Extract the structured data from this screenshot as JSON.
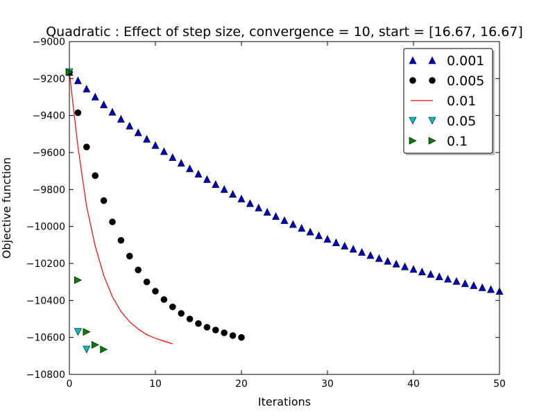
{
  "chart_data": {
    "type": "scatter",
    "title": "Quadratic : Effect of step size, convergence = 10, start = [16.67, 16.67]",
    "xlabel": "Iterations",
    "ylabel": "Objective function",
    "xlim": [
      0,
      50
    ],
    "ylim": [
      -10800,
      -9000
    ],
    "xticks": [
      "0",
      "10",
      "20",
      "30",
      "40",
      "50"
    ],
    "yticks": [
      "−9000",
      "−9200",
      "−9400",
      "−9600",
      "−9800",
      "−10000",
      "−10200",
      "−10400",
      "−10600",
      "−10800"
    ],
    "xtick_values": [
      0,
      10,
      20,
      30,
      40,
      50
    ],
    "ytick_values": [
      -9000,
      -9200,
      -9400,
      -9600,
      -9800,
      -10000,
      -10200,
      -10400,
      -10600,
      -10800
    ],
    "grid": false,
    "legend_position": "top-right",
    "series": [
      {
        "name": "0.001",
        "marker": "triangle-up",
        "color": "#0000bf",
        "x": [
          0,
          1,
          2,
          3,
          4,
          5,
          6,
          7,
          8,
          9,
          10,
          11,
          12,
          13,
          14,
          15,
          16,
          17,
          18,
          19,
          20,
          21,
          22,
          23,
          24,
          25,
          26,
          27,
          28,
          29,
          30,
          31,
          32,
          33,
          34,
          35,
          36,
          37,
          38,
          39,
          40,
          41,
          42,
          43,
          44,
          45,
          46,
          47,
          48,
          49,
          50
        ],
        "y": [
          -9165,
          -9210,
          -9255,
          -9298,
          -9340,
          -9380,
          -9418,
          -9455,
          -9491,
          -9526,
          -9560,
          -9593,
          -9625,
          -9656,
          -9686,
          -9715,
          -9744,
          -9771,
          -9798,
          -9824,
          -9849,
          -9874,
          -9898,
          -9921,
          -9944,
          -9966,
          -9987,
          -10008,
          -10028,
          -10048,
          -10067,
          -10086,
          -10104,
          -10121,
          -10138,
          -10155,
          -10171,
          -10186,
          -10201,
          -10216,
          -10230,
          -10244,
          -10257,
          -10270,
          -10283,
          -10295,
          -10307,
          -10318,
          -10329,
          -10339,
          -10349
        ]
      },
      {
        "name": "0.005",
        "marker": "circle",
        "color": "#000000",
        "x": [
          0,
          1,
          2,
          3,
          4,
          5,
          6,
          7,
          8,
          9,
          10,
          11,
          12,
          13,
          14,
          15,
          16,
          17,
          18,
          19,
          20
        ],
        "y": [
          -9165,
          -9385,
          -9570,
          -9725,
          -9860,
          -9975,
          -10075,
          -10160,
          -10235,
          -10300,
          -10350,
          -10395,
          -10435,
          -10470,
          -10500,
          -10525,
          -10545,
          -10560,
          -10575,
          -10590,
          -10600
        ]
      },
      {
        "name": "0.01",
        "marker": "line",
        "color": "#ff0000",
        "x": [
          0,
          1,
          2,
          3,
          4,
          5,
          6,
          7,
          8,
          9,
          10,
          11,
          12
        ],
        "y": [
          -9165,
          -9570,
          -9890,
          -10105,
          -10265,
          -10380,
          -10460,
          -10515,
          -10555,
          -10585,
          -10605,
          -10620,
          -10635
        ]
      },
      {
        "name": "0.05",
        "marker": "triangle-down",
        "color": "#00bfbf",
        "x": [
          0,
          1,
          2
        ],
        "y": [
          -9165,
          -10570,
          -10665
        ]
      },
      {
        "name": "0.1",
        "marker": "triangle-right",
        "color": "#008000",
        "x": [
          0,
          1,
          2,
          3,
          4
        ],
        "y": [
          -9165,
          -10290,
          -10570,
          -10640,
          -10665
        ]
      }
    ]
  }
}
